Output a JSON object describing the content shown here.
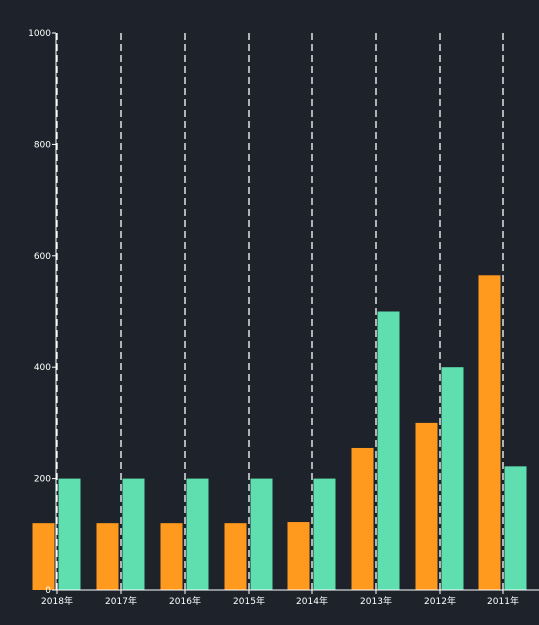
{
  "chart_data": {
    "type": "bar",
    "categories": [
      "2018年",
      "2017年",
      "2016年",
      "2015年",
      "2014年",
      "2013年",
      "2012年",
      "2011年"
    ],
    "series": [
      {
        "values": [
          120,
          120,
          120,
          120,
          122,
          255,
          300,
          565
        ],
        "color": "#ff9a1f"
      },
      {
        "values": [
          200,
          200,
          200,
          200,
          200,
          500,
          400,
          222
        ],
        "color": "#5fdfb0"
      }
    ],
    "ylim": [
      0,
      1000
    ],
    "yticks": [
      0,
      200,
      400,
      600,
      800,
      1000
    ],
    "grid": "vertical-dashed",
    "legend": "none",
    "background": "#1e232b",
    "axis_color": "#ffffff"
  }
}
